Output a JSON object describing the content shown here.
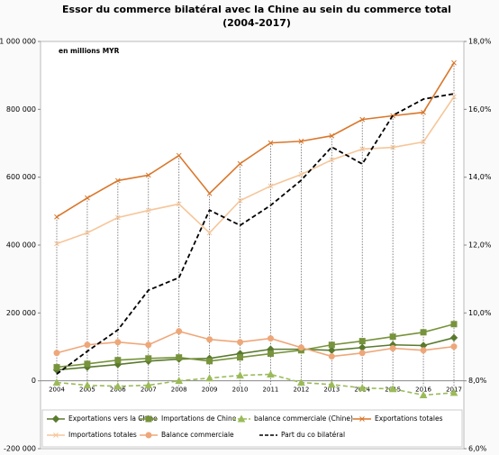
{
  "chart_data": {
    "type": "line",
    "title": "Essor du commerce bilatéral avec la Chine au sein du commerce total",
    "subtitle": "(2004-2017)",
    "annotation": "en millions MYR",
    "categories": [
      "2004",
      "2005",
      "2006",
      "2007",
      "2008",
      "2009",
      "2010",
      "2011",
      "2012",
      "2013",
      "2014",
      "2015",
      "2016",
      "2017"
    ],
    "ylim": [
      -200000,
      1000000
    ],
    "yticks": [
      {
        "value": -200000,
        "label": "-200 000"
      },
      0,
      {
        "value": 200000,
        "label": "200 000"
      },
      {
        "value": 400000,
        "label": "400 000"
      },
      {
        "value": 600000,
        "label": "600 000"
      },
      {
        "value": 800000,
        "label": "800 000"
      },
      {
        "value": 1000000,
        "label": "1 000 000"
      }
    ],
    "y2lim": [
      6,
      18
    ],
    "y2ticks": [
      {
        "value": 6,
        "label": "6,0%"
      },
      {
        "value": 8,
        "label": "8,0%"
      },
      {
        "value": 10,
        "label": "10,0%"
      },
      {
        "value": 12,
        "label": "12,0%"
      },
      {
        "value": 14,
        "label": "14,0%"
      },
      {
        "value": 16,
        "label": "16,0%"
      },
      {
        "value": 18,
        "label": "18,0%"
      }
    ],
    "series": [
      {
        "name": "Exportations vers la Chine",
        "color": "#5a7a2e",
        "marker": "diamond",
        "dash": false,
        "values": [
          32000,
          40000,
          48000,
          58000,
          64000,
          66000,
          80000,
          93000,
          93000,
          90000,
          98000,
          106000,
          104000,
          127000
        ]
      },
      {
        "name": "Importations de Chine",
        "color": "#77933c",
        "marker": "square",
        "dash": false,
        "values": [
          40000,
          50000,
          61000,
          66000,
          69000,
          58000,
          69000,
          80000,
          90000,
          106000,
          117000,
          130000,
          143000,
          167000
        ]
      },
      {
        "name": "balance commerciale (Chine)",
        "color": "#9bbb59",
        "marker": "triangle",
        "dash": true,
        "values": [
          -5000,
          -13000,
          -16000,
          -13000,
          0,
          8000,
          16000,
          19000,
          -5000,
          -11000,
          -21000,
          -24000,
          -42000,
          -35000
        ]
      },
      {
        "name": "Exportations totales",
        "color": "#d9772b",
        "marker": "cross",
        "dash": false,
        "values": [
          483000,
          539000,
          590000,
          606000,
          664000,
          552000,
          640000,
          701000,
          706000,
          722000,
          770000,
          781000,
          791000,
          937000
        ]
      },
      {
        "name": "Importations totales",
        "color": "#f5c69a",
        "marker": "cross",
        "dash": false,
        "values": [
          404000,
          436000,
          481000,
          502000,
          521000,
          436000,
          531000,
          574000,
          608000,
          651000,
          683000,
          688000,
          704000,
          837000
        ]
      },
      {
        "name": "Balance commerciale",
        "color": "#eea779",
        "marker": "circle",
        "dash": false,
        "values": [
          82000,
          106000,
          114000,
          106000,
          146000,
          122000,
          114000,
          125000,
          98000,
          72000,
          82000,
          96000,
          90000,
          101000
        ]
      },
      {
        "name": "Part du co bilatéral",
        "color": "#000000",
        "marker": "none",
        "dash": true,
        "axis": "y2",
        "values": [
          8.2,
          8.87,
          9.5,
          10.67,
          11.04,
          13.03,
          12.58,
          13.17,
          13.91,
          14.89,
          14.39,
          15.82,
          16.3,
          16.46
        ]
      }
    ]
  }
}
